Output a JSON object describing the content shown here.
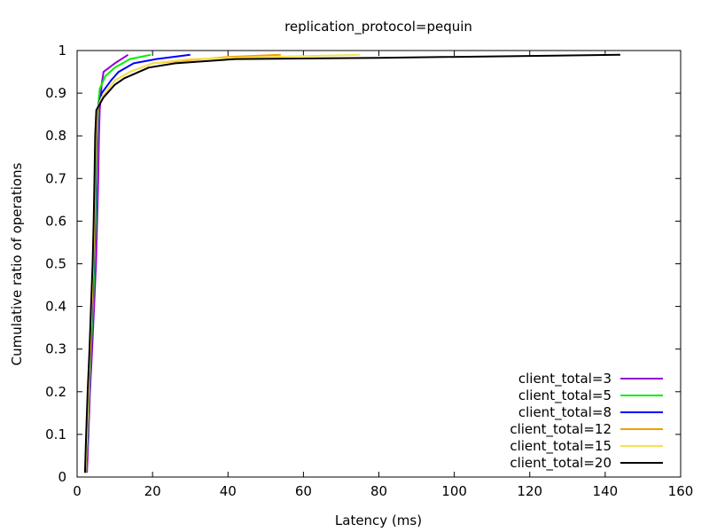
{
  "chart_data": {
    "type": "line",
    "title": "replication_protocol=pequin",
    "xlabel": "Latency (ms)",
    "ylabel": "Cumulative ratio of operations",
    "xlim": [
      0,
      160
    ],
    "ylim": [
      0,
      1
    ],
    "xticks": [
      0,
      20,
      40,
      60,
      80,
      100,
      120,
      140,
      160
    ],
    "yticks": [
      0,
      0.1,
      0.2,
      0.3,
      0.4,
      0.5,
      0.6,
      0.7,
      0.8,
      0.9,
      1
    ],
    "xtick_labels": [
      "0",
      "20",
      "40",
      "60",
      "80",
      "100",
      "120",
      "140",
      "160"
    ],
    "ytick_labels": [
      "0",
      "0.1",
      "0.2",
      "0.3",
      "0.4",
      "0.5",
      "0.6",
      "0.7",
      "0.8",
      "0.9",
      "1"
    ],
    "grid": false,
    "legend_position": "bottom-right",
    "series": [
      {
        "name": "client_total=3",
        "color": "#9400d3",
        "points": [
          [
            2.6,
            0.01
          ],
          [
            3.0,
            0.1
          ],
          [
            3.4,
            0.2
          ],
          [
            4.0,
            0.3
          ],
          [
            4.5,
            0.4
          ],
          [
            5.0,
            0.5
          ],
          [
            5.3,
            0.6
          ],
          [
            5.6,
            0.7
          ],
          [
            5.8,
            0.8
          ],
          [
            6.0,
            0.86
          ],
          [
            6.5,
            0.92
          ],
          [
            7.0,
            0.95
          ],
          [
            10.0,
            0.97
          ],
          [
            13.5,
            0.99
          ]
        ]
      },
      {
        "name": "client_total=5",
        "color": "#00ee00",
        "points": [
          [
            2.4,
            0.01
          ],
          [
            2.8,
            0.1
          ],
          [
            3.2,
            0.2
          ],
          [
            3.7,
            0.3
          ],
          [
            4.2,
            0.4
          ],
          [
            4.6,
            0.5
          ],
          [
            4.9,
            0.6
          ],
          [
            5.1,
            0.7
          ],
          [
            5.3,
            0.8
          ],
          [
            5.5,
            0.86
          ],
          [
            6.0,
            0.91
          ],
          [
            7.5,
            0.94
          ],
          [
            10.0,
            0.96
          ],
          [
            14.0,
            0.98
          ],
          [
            19.5,
            0.99
          ]
        ]
      },
      {
        "name": "client_total=8",
        "color": "#0000ff",
        "points": [
          [
            2.3,
            0.01
          ],
          [
            2.7,
            0.1
          ],
          [
            3.1,
            0.2
          ],
          [
            3.6,
            0.3
          ],
          [
            4.0,
            0.4
          ],
          [
            4.4,
            0.5
          ],
          [
            4.7,
            0.6
          ],
          [
            4.9,
            0.7
          ],
          [
            5.1,
            0.8
          ],
          [
            5.3,
            0.86
          ],
          [
            6.5,
            0.9
          ],
          [
            9.0,
            0.93
          ],
          [
            11.0,
            0.95
          ],
          [
            15.0,
            0.97
          ],
          [
            21.0,
            0.98
          ],
          [
            30.0,
            0.99
          ]
        ]
      },
      {
        "name": "client_total=12",
        "color": "#f0a000",
        "points": [
          [
            2.2,
            0.01
          ],
          [
            2.6,
            0.1
          ],
          [
            3.0,
            0.2
          ],
          [
            3.5,
            0.3
          ],
          [
            3.9,
            0.4
          ],
          [
            4.3,
            0.5
          ],
          [
            4.6,
            0.6
          ],
          [
            4.8,
            0.7
          ],
          [
            5.0,
            0.8
          ],
          [
            5.3,
            0.86
          ],
          [
            6.5,
            0.89
          ],
          [
            10.0,
            0.93
          ],
          [
            14.0,
            0.95
          ],
          [
            20.0,
            0.97
          ],
          [
            40.0,
            0.985
          ],
          [
            54.0,
            0.99
          ]
        ]
      },
      {
        "name": "client_total=15",
        "color": "#f5e050",
        "points": [
          [
            2.2,
            0.01
          ],
          [
            2.6,
            0.1
          ],
          [
            3.0,
            0.2
          ],
          [
            3.4,
            0.3
          ],
          [
            3.8,
            0.4
          ],
          [
            4.2,
            0.5
          ],
          [
            4.5,
            0.6
          ],
          [
            4.7,
            0.7
          ],
          [
            4.9,
            0.8
          ],
          [
            5.2,
            0.86
          ],
          [
            6.5,
            0.89
          ],
          [
            10.0,
            0.93
          ],
          [
            14.0,
            0.95
          ],
          [
            20.0,
            0.97
          ],
          [
            30.0,
            0.98
          ],
          [
            50.0,
            0.985
          ],
          [
            75.0,
            0.99
          ]
        ]
      },
      {
        "name": "client_total=20",
        "color": "#000000",
        "points": [
          [
            2.1,
            0.01
          ],
          [
            2.4,
            0.1
          ],
          [
            2.8,
            0.2
          ],
          [
            3.3,
            0.3
          ],
          [
            3.7,
            0.4
          ],
          [
            4.1,
            0.5
          ],
          [
            4.4,
            0.6
          ],
          [
            4.6,
            0.7
          ],
          [
            4.8,
            0.8
          ],
          [
            5.1,
            0.86
          ],
          [
            7.0,
            0.89
          ],
          [
            10.0,
            0.92
          ],
          [
            12.5,
            0.935
          ],
          [
            19.0,
            0.96
          ],
          [
            26.0,
            0.97
          ],
          [
            42.0,
            0.98
          ],
          [
            80.0,
            0.983
          ],
          [
            144.0,
            0.99
          ]
        ]
      }
    ]
  }
}
